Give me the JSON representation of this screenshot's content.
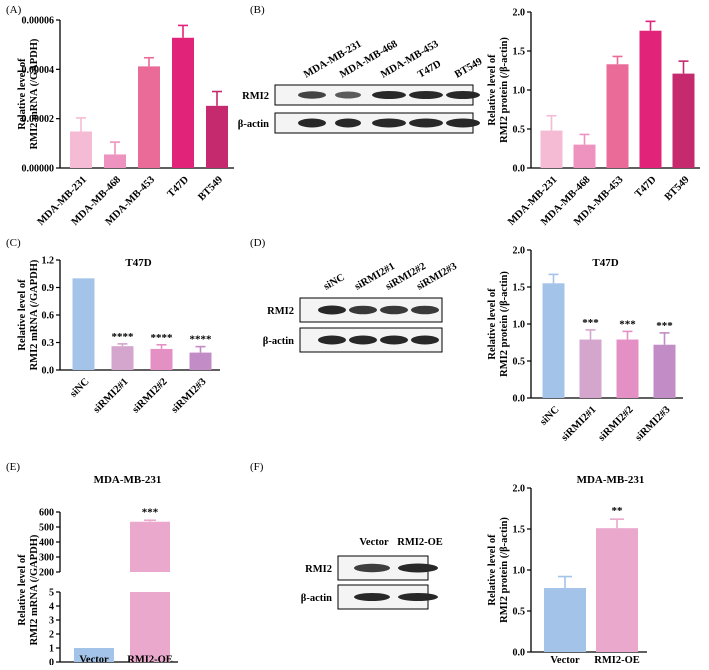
{
  "panels": {
    "A": "(A)",
    "B": "(B)",
    "C": "(C)",
    "D": "(D)",
    "E": "(E)",
    "F": "(F)"
  },
  "blots": {
    "B": {
      "lanes": [
        "MDA-MB-231",
        "MDA-MB-468",
        "MDA-MB-453",
        "T47D",
        "BT549"
      ],
      "rows": [
        "RMI2",
        "β-actin"
      ]
    },
    "D": {
      "lanes": [
        "siNC",
        "siRMI2#1",
        "siRMI2#2",
        "siRMI2#3"
      ],
      "rows": [
        "RMI2",
        "β-actin"
      ]
    },
    "F": {
      "lanes": [
        "Vector",
        "RMI2-OE"
      ],
      "rows": [
        "RMI2",
        "β-actin"
      ]
    }
  },
  "chart_data": [
    {
      "id": "A",
      "type": "bar",
      "title": "",
      "ylabel_lines": [
        "Relative level of",
        "RMI2 mRNA (/GAPDH)"
      ],
      "ylim": [
        0,
        6e-05
      ],
      "yticks": [
        "0.00000",
        "0.00002",
        "0.00004",
        "0.00006"
      ],
      "categories": [
        "MDA-MB-231",
        "MDA-MB-468",
        "MDA-MB-453",
        "T47D",
        "BT549"
      ],
      "values": [
        1.48e-05,
        5.5e-06,
        4.12e-05,
        5.28e-05,
        2.52e-05
      ],
      "errors": [
        5.5e-06,
        5e-06,
        3.5e-06,
        5e-06,
        5.8e-06
      ],
      "colors": [
        "#f6bbd4",
        "#ee93c0",
        "#ea6a98",
        "#e2237a",
        "#c42a6d"
      ],
      "sig": []
    },
    {
      "id": "B",
      "type": "bar",
      "title": "",
      "ylabel_lines": [
        "Relative level of",
        "RMI2 protein (/β-actin)"
      ],
      "ylim": [
        0,
        2.0
      ],
      "yticks": [
        "0.0",
        "0.5",
        "1.0",
        "1.5",
        "2.0"
      ],
      "categories": [
        "MDA-MB-231",
        "MDA-MB-468",
        "MDA-MB-453",
        "T47D",
        "BT549"
      ],
      "values": [
        0.48,
        0.3,
        1.33,
        1.76,
        1.21
      ],
      "errors": [
        0.19,
        0.13,
        0.1,
        0.12,
        0.16
      ],
      "colors": [
        "#f6bbd4",
        "#ee93c0",
        "#ea6a98",
        "#e2237a",
        "#c42a6d"
      ],
      "sig": []
    },
    {
      "id": "C",
      "type": "bar",
      "title": "T47D",
      "ylabel_lines": [
        "Relative level of",
        "RMI2 mRNA (/GAPDH)"
      ],
      "ylim": [
        0,
        1.2
      ],
      "yticks": [
        "0.0",
        "0.3",
        "0.6",
        "0.9",
        "1.2"
      ],
      "categories": [
        "siNC",
        "siRMI2#1",
        "siRMI2#2",
        "siRMI2#3"
      ],
      "values": [
        1.0,
        0.26,
        0.23,
        0.19
      ],
      "errors": [
        0.0,
        0.025,
        0.045,
        0.065
      ],
      "colors": [
        "#a4c3e8",
        "#d5a6cd",
        "#e490c4",
        "#c28cc6"
      ],
      "sig": [
        "",
        "****",
        "****",
        "****"
      ]
    },
    {
      "id": "D",
      "type": "bar",
      "title": "T47D",
      "ylabel_lines": [
        "Relative level of",
        "RMI2 protein (/β-actin)"
      ],
      "ylim": [
        0,
        2.0
      ],
      "yticks": [
        "0.0",
        "0.5",
        "1.0",
        "1.5",
        "2.0"
      ],
      "categories": [
        "siNC",
        "siRMI2#1",
        "siRMI2#2",
        "siRMI2#3"
      ],
      "values": [
        1.55,
        0.79,
        0.79,
        0.72
      ],
      "errors": [
        0.12,
        0.13,
        0.11,
        0.16
      ],
      "colors": [
        "#a4c3e8",
        "#d5a6cd",
        "#e490c4",
        "#c28cc6"
      ],
      "sig": [
        "",
        "***",
        "***",
        "***"
      ]
    },
    {
      "id": "E",
      "type": "bar",
      "title": "MDA-MB-231",
      "ylabel_lines": [
        "Relative level of",
        "RMI2 mRNA (/GAPDH)"
      ],
      "ylim_lower": [
        0,
        5
      ],
      "ylim_upper": [
        200,
        600
      ],
      "yticks_lower": [
        "0",
        "1",
        "2",
        "3",
        "4",
        "5"
      ],
      "yticks_upper": [
        "200",
        "300",
        "400",
        "500",
        "600"
      ],
      "categories": [
        "Vector",
        "RMI2-OE"
      ],
      "values": [
        1.0,
        535
      ],
      "errors": [
        0,
        10
      ],
      "colors": [
        "#a4c3e8",
        "#e9a8cc"
      ],
      "sig": [
        "",
        "***"
      ]
    },
    {
      "id": "F",
      "type": "bar",
      "title": "MDA-MB-231",
      "ylabel_lines": [
        "Relative level of",
        "RMI2 protein (/β-actin)"
      ],
      "ylim": [
        0,
        2.0
      ],
      "yticks": [
        "0.0",
        "0.5",
        "1.0",
        "1.5",
        "2.0"
      ],
      "categories": [
        "Vector",
        "RMI2-OE"
      ],
      "values": [
        0.78,
        1.51
      ],
      "errors": [
        0.14,
        0.11
      ],
      "colors": [
        "#a4c3e8",
        "#e9a8cc"
      ],
      "sig": [
        "",
        "**"
      ]
    }
  ]
}
